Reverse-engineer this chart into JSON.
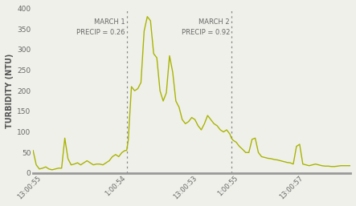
{
  "ylabel": "TURBIDITY (NTU)",
  "ylim": [
    0,
    400
  ],
  "yticks": [
    0,
    50,
    100,
    150,
    200,
    250,
    300,
    350,
    400
  ],
  "line_color": "#a8b400",
  "line_width": 1.0,
  "bg_color": "#f0f0eb",
  "vline1_x": 0.295,
  "vline2_x": 0.625,
  "vline_color": "#888888",
  "label1": "MARCH 1\nPRECIP = 0.26",
  "label2": "MARCH 2\nPRECIP = 0.92",
  "label1_ha": "right",
  "label2_ha": "right",
  "xtick_labels": [
    "13:00:55",
    "1:00:54",
    "13:00:53",
    "1:00:55",
    "13:00:57"
  ],
  "xtick_positions": [
    0.03,
    0.295,
    0.52,
    0.65,
    0.855
  ],
  "x": [
    0.0,
    0.01,
    0.02,
    0.03,
    0.04,
    0.05,
    0.06,
    0.07,
    0.08,
    0.09,
    0.1,
    0.11,
    0.12,
    0.13,
    0.14,
    0.15,
    0.16,
    0.17,
    0.18,
    0.19,
    0.2,
    0.21,
    0.22,
    0.23,
    0.24,
    0.25,
    0.26,
    0.27,
    0.28,
    0.29,
    0.295,
    0.3,
    0.31,
    0.32,
    0.33,
    0.34,
    0.35,
    0.36,
    0.37,
    0.38,
    0.39,
    0.4,
    0.41,
    0.42,
    0.43,
    0.44,
    0.45,
    0.46,
    0.47,
    0.48,
    0.49,
    0.5,
    0.51,
    0.52,
    0.53,
    0.54,
    0.55,
    0.56,
    0.57,
    0.58,
    0.59,
    0.6,
    0.61,
    0.62,
    0.625,
    0.63,
    0.64,
    0.65,
    0.66,
    0.67,
    0.68,
    0.69,
    0.7,
    0.71,
    0.72,
    0.73,
    0.74,
    0.75,
    0.76,
    0.77,
    0.78,
    0.79,
    0.8,
    0.81,
    0.82,
    0.83,
    0.84,
    0.85,
    0.86,
    0.87,
    0.88,
    0.89,
    0.9,
    0.91,
    0.92,
    0.93,
    0.94,
    0.95,
    0.96,
    0.97,
    1.0
  ],
  "y": [
    55,
    20,
    10,
    12,
    15,
    10,
    8,
    10,
    12,
    12,
    85,
    35,
    20,
    22,
    25,
    20,
    25,
    30,
    25,
    20,
    22,
    22,
    20,
    25,
    30,
    40,
    45,
    40,
    50,
    55,
    55,
    80,
    210,
    200,
    205,
    220,
    345,
    380,
    370,
    290,
    280,
    200,
    175,
    195,
    285,
    245,
    175,
    160,
    130,
    120,
    125,
    135,
    130,
    115,
    105,
    120,
    140,
    130,
    120,
    115,
    105,
    100,
    105,
    95,
    85,
    80,
    75,
    65,
    58,
    50,
    50,
    82,
    85,
    50,
    40,
    38,
    36,
    35,
    33,
    32,
    30,
    28,
    26,
    25,
    22,
    65,
    70,
    22,
    20,
    18,
    20,
    22,
    20,
    18,
    17,
    17,
    16,
    16,
    17,
    18,
    18
  ]
}
